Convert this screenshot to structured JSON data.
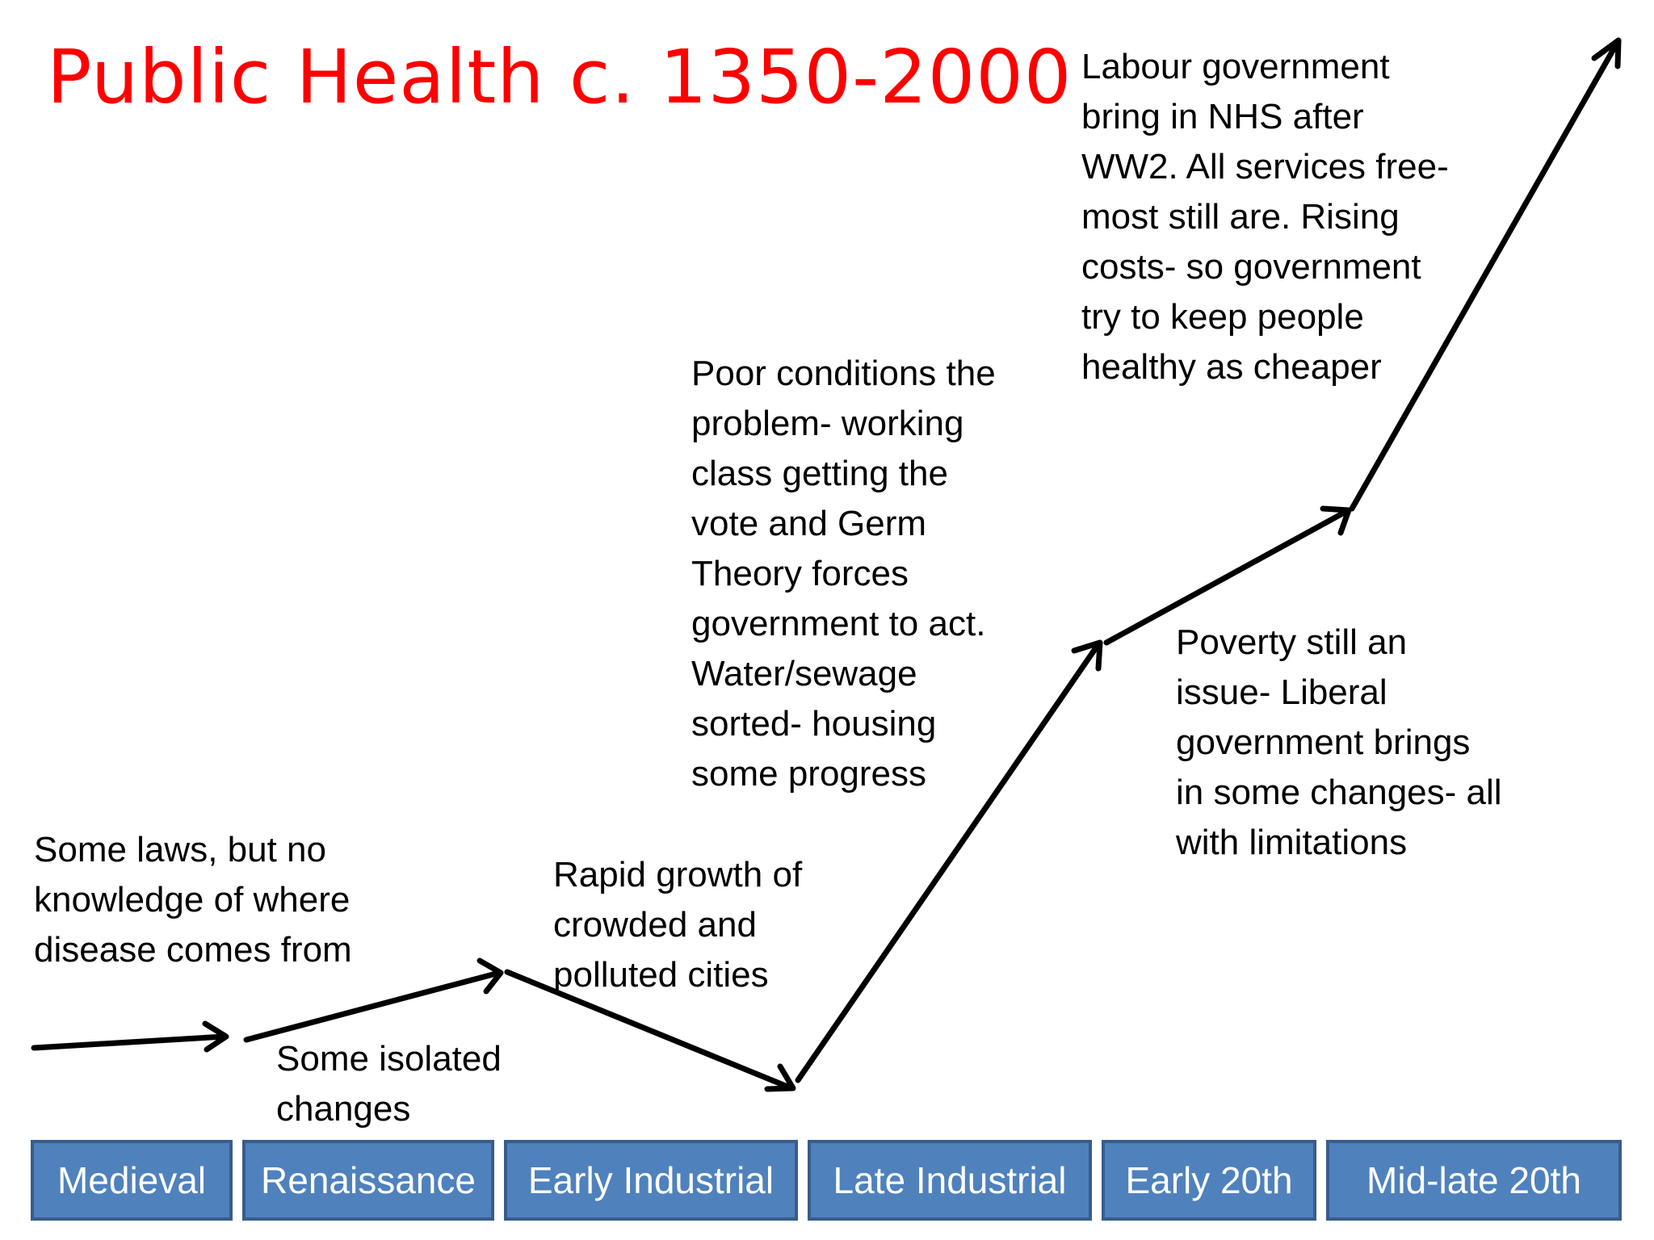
{
  "title": "Public Health c. 1350-2000",
  "notes": {
    "medieval": "Some laws, but no\nknowledge of where\ndisease comes from",
    "renaissance": "Some isolated\nchanges",
    "early_industrial": "Rapid growth of\ncrowded and\npolluted cities",
    "late_industrial": "Poor conditions the\nproblem- working\nclass getting the\nvote and Germ\nTheory forces\ngovernment to act.\nWater/sewage\nsorted- housing\nsome progress",
    "early_20th": "Poverty still an\nissue- Liberal\ngovernment brings\nin some changes- all\nwith limitations",
    "mid_late_20th": "Labour government\nbring in NHS after\nWW2.  All services free-\nmost still are.  Rising\ncosts- so government\ntry to keep people\nhealthy as cheaper"
  },
  "periods": [
    "Medieval",
    "Renaissance",
    "Early Industrial",
    "Late Industrial",
    "Early 20th",
    "Mid-late 20th"
  ],
  "colors": {
    "title": "#ff0000",
    "period_fill": "#4f81bd",
    "period_border": "#385d8a",
    "period_text": "#ffffff",
    "arrow": "#000000"
  }
}
